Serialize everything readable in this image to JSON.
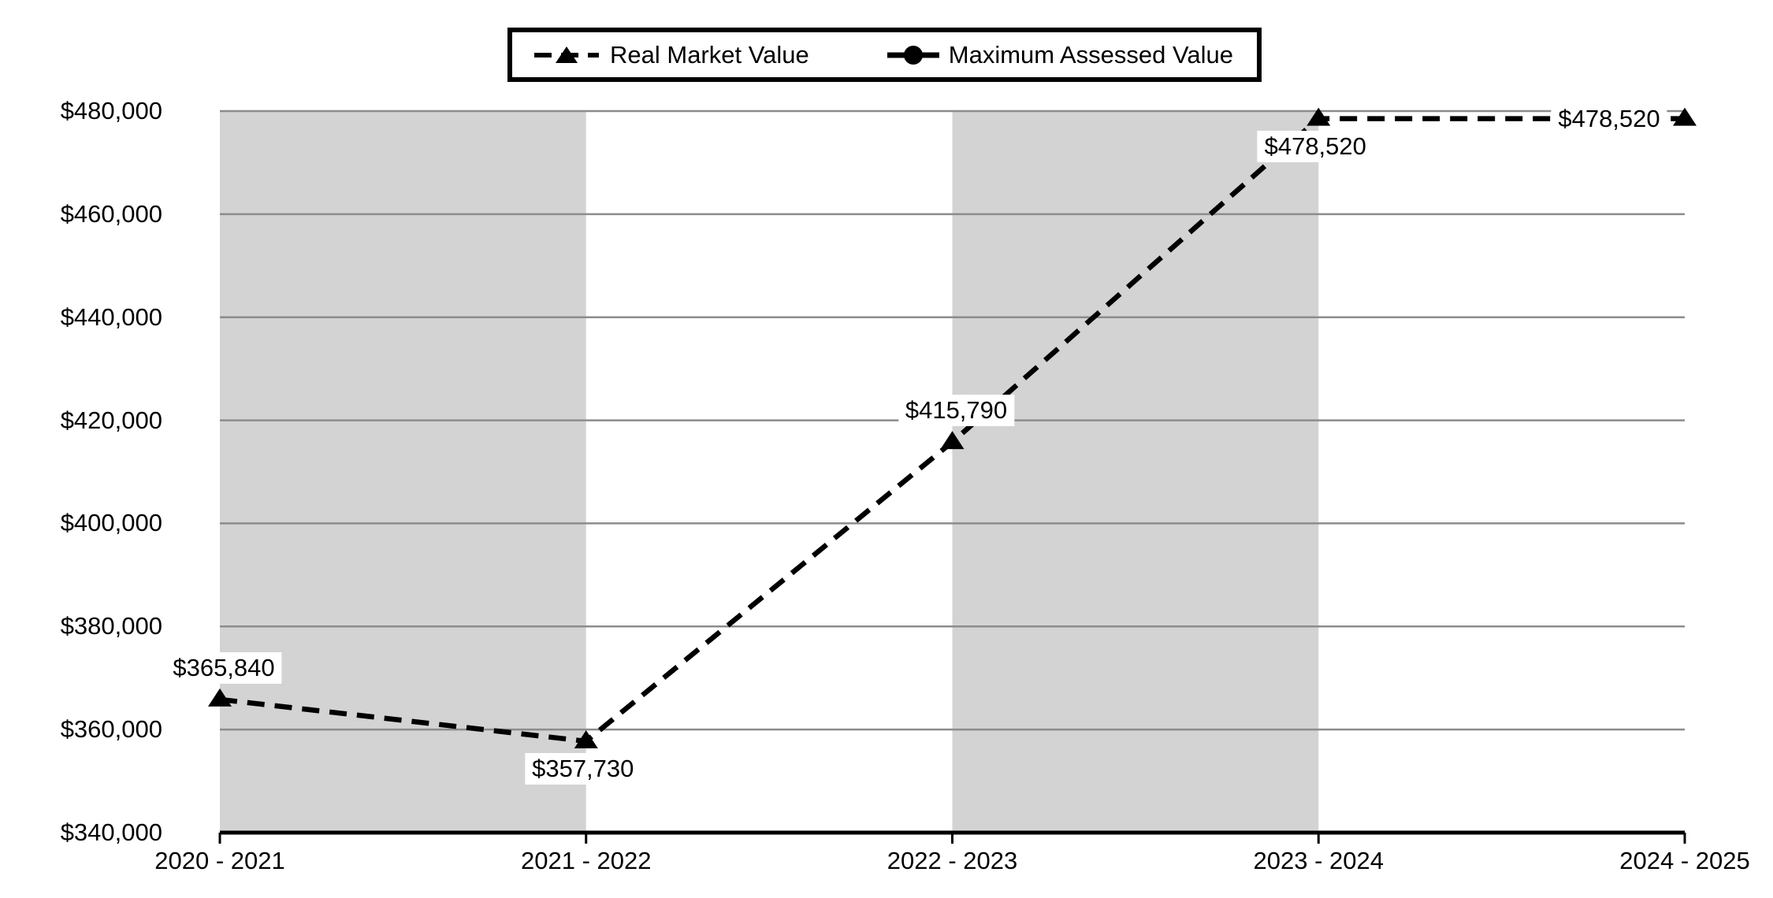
{
  "page": {
    "background": "#ffffff"
  },
  "legend": {
    "items": [
      {
        "label": "Real Market Value",
        "marker": "triangle",
        "line_style": "dashed"
      },
      {
        "label": "Maximum Assessed Value",
        "marker": "circle",
        "line_style": "solid"
      }
    ]
  },
  "chart_data": {
    "type": "line",
    "title": "",
    "xlabel": "",
    "ylabel": "",
    "categories": [
      "2020 - 2021",
      "2021 - 2022",
      "2022 - 2023",
      "2023 - 2024",
      "2024 - 2025"
    ],
    "series": [
      {
        "name": "Real Market Value",
        "line_style": "dashed",
        "marker": "triangle",
        "color": "#000000",
        "values": [
          365840,
          357730,
          415790,
          478520,
          478520
        ],
        "data_labels": [
          "$365,840",
          "$357,730",
          "$415,790",
          "$478,520",
          "$478,520"
        ],
        "label_placements": [
          "above",
          "below",
          "above",
          "below",
          "left"
        ]
      },
      {
        "name": "Maximum Assessed Value",
        "line_style": "solid",
        "marker": "circle",
        "color": "#000000",
        "values": [],
        "data_labels": [],
        "label_placements": []
      }
    ],
    "ylim": [
      340000,
      480000
    ],
    "ytick_step": 20000,
    "ytick_labels": [
      "$480,000",
      "$460,000",
      "$440,000",
      "$420,000",
      "$400,000",
      "$380,000",
      "$360,000",
      "$340,000"
    ],
    "grid": "horizontal",
    "legend_position": "top-center",
    "shaded_column_bands": [
      [
        0,
        1
      ],
      [
        2,
        3
      ]
    ],
    "colors": {
      "band": "#d3d3d3",
      "gridline": "#8c8c8c",
      "axis": "#000000",
      "series": "#000000",
      "label_bg": "#ffffff",
      "text": "#000000",
      "background": "#ffffff"
    }
  }
}
